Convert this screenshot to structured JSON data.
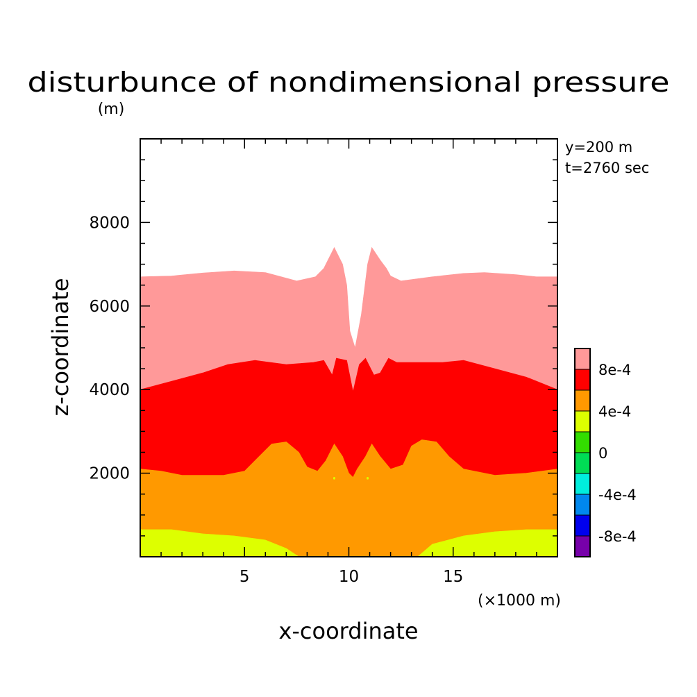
{
  "chart_data": {
    "type": "heatmap",
    "plot_kind": "filled-contour",
    "title": "disturbunce of nondimensional pressure",
    "units_label": "(m)",
    "xlabel": "x-coordinate",
    "ylabel": "z-coordinate",
    "x_unit_label": "(×1000 m)",
    "info": [
      "y=200 m",
      "t=2760 sec"
    ],
    "xlim": [
      0,
      20
    ],
    "ylim": [
      0,
      10000
    ],
    "x_ticks": [
      5,
      10,
      15
    ],
    "y_ticks": [
      2000,
      4000,
      6000,
      8000
    ],
    "x_minor_step": 1,
    "y_minor_step": 500,
    "colorbar": {
      "tick_labels": [
        "8e-4",
        "4e-4",
        "0",
        "-4e-4",
        "-8e-4"
      ],
      "levels_top_to_bottom": [
        {
          "range": ">1e-3",
          "color": "#ff9999"
        },
        {
          "range": "8e-4 to 1e-3",
          "color": "#ff0000"
        },
        {
          "range": "6e-4 to 8e-4",
          "color": "#ff9900"
        },
        {
          "range": "4e-4 to 6e-4",
          "color": "#ddff00"
        },
        {
          "range": "2e-4 to 4e-4",
          "color": "#33dd00"
        },
        {
          "range": "0 to 2e-4",
          "color": "#00dd55"
        },
        {
          "range": "-2e-4 to 0",
          "color": "#00eedd"
        },
        {
          "range": "-4e-4 to -2e-4",
          "color": "#0088ee"
        },
        {
          "range": "-6e-4 to -4e-4",
          "color": "#0000ee"
        },
        {
          "range": "< -6e-4",
          "color": "#7700aa"
        }
      ]
    },
    "regions": [
      {
        "name": "upper",
        "color": "#ffffff",
        "boundary": [
          [
            0,
            10000
          ],
          [
            20,
            10000
          ],
          [
            20,
            6700
          ],
          [
            19,
            6700
          ],
          [
            18,
            6750
          ],
          [
            16.5,
            6800
          ],
          [
            15.5,
            6780
          ],
          [
            14,
            6700
          ],
          [
            12.5,
            6600
          ],
          [
            12,
            6720
          ],
          [
            11.8,
            6900
          ],
          [
            11.5,
            7100
          ],
          [
            11.1,
            7400
          ],
          [
            10.9,
            7000
          ],
          [
            10.6,
            5800
          ],
          [
            10.3,
            5000
          ],
          [
            10.05,
            5400
          ],
          [
            9.9,
            6500
          ],
          [
            9.7,
            7000
          ],
          [
            9.3,
            7400
          ],
          [
            8.8,
            6900
          ],
          [
            8.4,
            6700
          ],
          [
            7.5,
            6600
          ],
          [
            6,
            6800
          ],
          [
            4.5,
            6840
          ],
          [
            3,
            6790
          ],
          [
            1.5,
            6720
          ],
          [
            0,
            6700
          ]
        ]
      },
      {
        "name": "light-red",
        "color": "#ff9999",
        "boundary": [
          [
            0,
            6700
          ],
          [
            1.5,
            6720
          ],
          [
            3,
            6790
          ],
          [
            4.5,
            6840
          ],
          [
            6,
            6800
          ],
          [
            7.5,
            6600
          ],
          [
            8.4,
            6700
          ],
          [
            8.8,
            6900
          ],
          [
            9.3,
            7400
          ],
          [
            9.7,
            7000
          ],
          [
            9.9,
            6500
          ],
          [
            10.05,
            5400
          ],
          [
            10.3,
            5000
          ],
          [
            10.6,
            5800
          ],
          [
            10.9,
            7000
          ],
          [
            11.1,
            7400
          ],
          [
            11.5,
            7100
          ],
          [
            11.8,
            6900
          ],
          [
            12,
            6720
          ],
          [
            12.5,
            6600
          ],
          [
            14,
            6700
          ],
          [
            15.5,
            6780
          ],
          [
            16.5,
            6800
          ],
          [
            18,
            6750
          ],
          [
            19,
            6700
          ],
          [
            20,
            6700
          ],
          [
            20,
            4000
          ],
          [
            18.5,
            4300
          ],
          [
            17,
            4500
          ],
          [
            15.5,
            4700
          ],
          [
            14.5,
            4650
          ],
          [
            13,
            4650
          ],
          [
            12.3,
            4650
          ],
          [
            11.9,
            4750
          ],
          [
            11.5,
            4400
          ],
          [
            11.2,
            4350
          ],
          [
            10.8,
            4750
          ],
          [
            10.5,
            4600
          ],
          [
            10.2,
            3950
          ],
          [
            9.9,
            4700
          ],
          [
            9.4,
            4750
          ],
          [
            9.2,
            4350
          ],
          [
            8.8,
            4700
          ],
          [
            8.3,
            4650
          ],
          [
            7,
            4600
          ],
          [
            5.5,
            4700
          ],
          [
            4.2,
            4600
          ],
          [
            3,
            4400
          ],
          [
            1.5,
            4200
          ],
          [
            0,
            4000
          ]
        ]
      },
      {
        "name": "red",
        "color": "#ff0000",
        "boundary": [
          [
            0,
            4000
          ],
          [
            1.5,
            4200
          ],
          [
            3,
            4400
          ],
          [
            4.2,
            4600
          ],
          [
            5.5,
            4700
          ],
          [
            7,
            4600
          ],
          [
            8.3,
            4650
          ],
          [
            8.8,
            4700
          ],
          [
            9.2,
            4350
          ],
          [
            9.4,
            4750
          ],
          [
            9.9,
            4700
          ],
          [
            10.2,
            3950
          ],
          [
            10.5,
            4600
          ],
          [
            10.8,
            4750
          ],
          [
            11.2,
            4350
          ],
          [
            11.5,
            4400
          ],
          [
            11.9,
            4750
          ],
          [
            12.3,
            4650
          ],
          [
            13,
            4650
          ],
          [
            14.5,
            4650
          ],
          [
            15.5,
            4700
          ],
          [
            17,
            4500
          ],
          [
            18.5,
            4300
          ],
          [
            20,
            4000
          ],
          [
            20,
            2100
          ],
          [
            18.5,
            2000
          ],
          [
            17,
            1950
          ],
          [
            15.5,
            2100
          ],
          [
            14.8,
            2400
          ],
          [
            14.2,
            2750
          ],
          [
            13.5,
            2800
          ],
          [
            13,
            2650
          ],
          [
            12.6,
            2200
          ],
          [
            12,
            2100
          ],
          [
            11.5,
            2400
          ],
          [
            11.1,
            2700
          ],
          [
            10.8,
            2400
          ],
          [
            10.4,
            2100
          ],
          [
            10.2,
            1900
          ],
          [
            10,
            2000
          ],
          [
            9.7,
            2400
          ],
          [
            9.3,
            2700
          ],
          [
            8.9,
            2300
          ],
          [
            8.5,
            2050
          ],
          [
            8,
            2150
          ],
          [
            7.6,
            2500
          ],
          [
            7,
            2750
          ],
          [
            6.3,
            2700
          ],
          [
            5.7,
            2400
          ],
          [
            5,
            2050
          ],
          [
            4,
            1950
          ],
          [
            2,
            1950
          ],
          [
            1,
            2050
          ],
          [
            0,
            2100
          ]
        ]
      },
      {
        "name": "orange",
        "color": "#ff9900",
        "boundary": [
          [
            0,
            2100
          ],
          [
            1,
            2050
          ],
          [
            2,
            1950
          ],
          [
            4,
            1950
          ],
          [
            5,
            2050
          ],
          [
            5.7,
            2400
          ],
          [
            6.3,
            2700
          ],
          [
            7,
            2750
          ],
          [
            7.6,
            2500
          ],
          [
            8,
            2150
          ],
          [
            8.5,
            2050
          ],
          [
            8.9,
            2300
          ],
          [
            9.3,
            2700
          ],
          [
            9.7,
            2400
          ],
          [
            10,
            2000
          ],
          [
            10.2,
            1900
          ],
          [
            10.4,
            2100
          ],
          [
            10.8,
            2400
          ],
          [
            11.1,
            2700
          ],
          [
            11.5,
            2400
          ],
          [
            12,
            2100
          ],
          [
            12.6,
            2200
          ],
          [
            13,
            2650
          ],
          [
            13.5,
            2800
          ],
          [
            14.2,
            2750
          ],
          [
            14.8,
            2400
          ],
          [
            15.5,
            2100
          ],
          [
            17,
            1950
          ],
          [
            18.5,
            2000
          ],
          [
            20,
            2100
          ],
          [
            20,
            650
          ],
          [
            18.5,
            650
          ],
          [
            17,
            600
          ],
          [
            15.5,
            500
          ],
          [
            14,
            300
          ],
          [
            13.3,
            0
          ],
          [
            7.6,
            0
          ],
          [
            7,
            200
          ],
          [
            6,
            400
          ],
          [
            4.5,
            500
          ],
          [
            3,
            550
          ],
          [
            1.5,
            650
          ],
          [
            0,
            650
          ]
        ]
      },
      {
        "name": "yellow",
        "color": "#ddff00",
        "boundary": [
          [
            0,
            650
          ],
          [
            1.5,
            650
          ],
          [
            3,
            550
          ],
          [
            4.5,
            500
          ],
          [
            6,
            400
          ],
          [
            7,
            200
          ],
          [
            7.6,
            0
          ],
          [
            0,
            0
          ]
        ]
      },
      {
        "name": "yellow",
        "color": "#ddff00",
        "boundary": [
          [
            13.3,
            0
          ],
          [
            14,
            300
          ],
          [
            15.5,
            500
          ],
          [
            17,
            600
          ],
          [
            18.5,
            650
          ],
          [
            20,
            650
          ],
          [
            20,
            0
          ]
        ]
      }
    ],
    "islands": [
      {
        "color": "#ffffff",
        "cx": 9.65,
        "cy": 7950,
        "rx": 0.22,
        "ry": 360
      },
      {
        "color": "#ffffff",
        "cx": 10.55,
        "cy": 7950,
        "rx": 0.22,
        "ry": 360
      },
      {
        "color": "#ddff00",
        "cx": 9.3,
        "cy": 1880,
        "rx": 0.05,
        "ry": 30
      },
      {
        "color": "#ddff00",
        "cx": 10.9,
        "cy": 1880,
        "rx": 0.05,
        "ry": 30
      }
    ]
  }
}
